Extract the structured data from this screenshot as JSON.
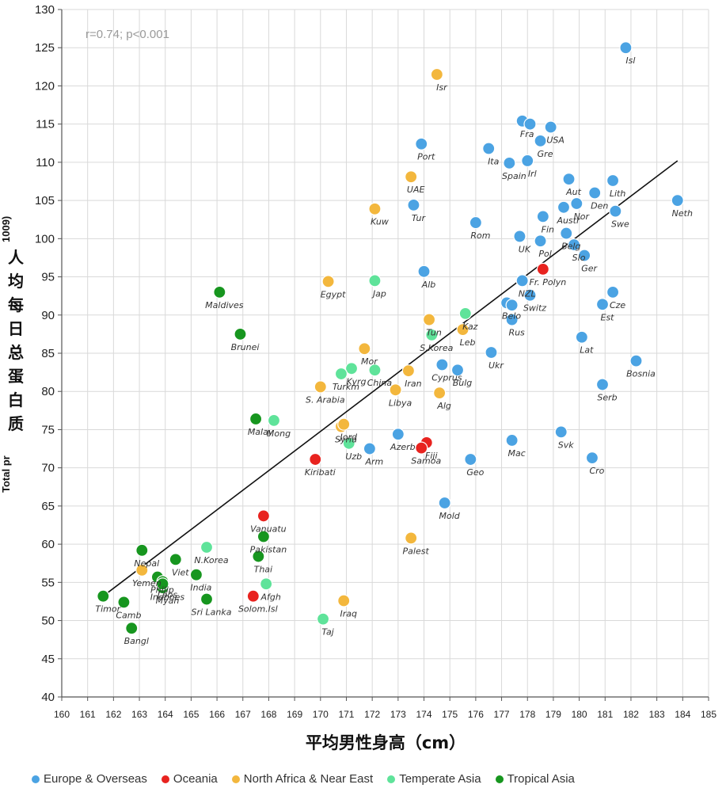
{
  "chart_data": {
    "type": "scatter",
    "xlabel": "平均男性身高（cm）",
    "ylabel_cn": [
      "人",
      "均",
      "每",
      "日",
      "总",
      "蛋",
      "白",
      "质"
    ],
    "ylabel_en_bottom": "Total pr",
    "ylabel_en_top": "1009)",
    "annotation": "r=0.74; p<0.001",
    "xlim": [
      160,
      185
    ],
    "ylim": [
      40,
      130
    ],
    "xticks": [
      160,
      161,
      162,
      163,
      164,
      165,
      166,
      167,
      168,
      169,
      170,
      171,
      172,
      173,
      174,
      175,
      176,
      177,
      178,
      179,
      180,
      181,
      182,
      183,
      184,
      185
    ],
    "yticks": [
      40,
      45,
      50,
      55,
      60,
      65,
      70,
      75,
      80,
      85,
      90,
      95,
      100,
      105,
      110,
      115,
      120,
      125,
      130
    ],
    "grid": true,
    "trendline": {
      "x1": 161.6,
      "y1": 53.2,
      "x2": 183.8,
      "y2": 110.2
    },
    "groups": [
      {
        "key": "eu",
        "name": "Europe & Overseas",
        "color": "#4ba3e3"
      },
      {
        "key": "oc",
        "name": "Oceania",
        "color": "#e8231f"
      },
      {
        "key": "na",
        "name": "North Africa & Near East",
        "color": "#f3b73d"
      },
      {
        "key": "ta",
        "name": "Temperate Asia",
        "color": "#5fe39a"
      },
      {
        "key": "tr",
        "name": "Tropical Asia",
        "color": "#17961f"
      }
    ],
    "points": [
      {
        "label": "Isl",
        "g": "eu",
        "x": 181.8,
        "y": 125.0
      },
      {
        "label": "Neth",
        "g": "eu",
        "x": 183.8,
        "y": 105.0
      },
      {
        "label": "Fra",
        "g": "eu",
        "x": 177.8,
        "y": 115.4
      },
      {
        "label": "",
        "g": "eu",
        "x": 178.1,
        "y": 115.0
      },
      {
        "label": "USA",
        "g": "eu",
        "x": 178.9,
        "y": 114.6
      },
      {
        "label": "Gre",
        "g": "eu",
        "x": 178.5,
        "y": 112.8
      },
      {
        "label": "Ita",
        "g": "eu",
        "x": 176.5,
        "y": 111.8
      },
      {
        "label": "Port",
        "g": "eu",
        "x": 173.9,
        "y": 112.4
      },
      {
        "label": "Irl",
        "g": "eu",
        "x": 178.0,
        "y": 110.2
      },
      {
        "label": "Spain",
        "g": "eu",
        "x": 177.3,
        "y": 109.9
      },
      {
        "label": "Aut",
        "g": "eu",
        "x": 179.6,
        "y": 107.8
      },
      {
        "label": "Den",
        "g": "eu",
        "x": 180.6,
        "y": 106.0
      },
      {
        "label": "Lith",
        "g": "eu",
        "x": 181.3,
        "y": 107.6
      },
      {
        "label": "Austr",
        "g": "eu",
        "x": 179.4,
        "y": 104.1
      },
      {
        "label": "Swe",
        "g": "eu",
        "x": 181.4,
        "y": 103.6
      },
      {
        "label": "Nor",
        "g": "eu",
        "x": 179.9,
        "y": 104.6
      },
      {
        "label": "Tur",
        "g": "eu",
        "x": 173.6,
        "y": 104.4
      },
      {
        "label": "Rom",
        "g": "eu",
        "x": 176.0,
        "y": 102.1
      },
      {
        "label": "Fin",
        "g": "eu",
        "x": 178.6,
        "y": 102.9
      },
      {
        "label": "Belg",
        "g": "eu",
        "x": 179.5,
        "y": 100.7
      },
      {
        "label": "UK",
        "g": "eu",
        "x": 177.7,
        "y": 100.3
      },
      {
        "label": "Pol",
        "g": "eu",
        "x": 178.5,
        "y": 99.7
      },
      {
        "label": "Slo",
        "g": "eu",
        "x": 179.8,
        "y": 99.2
      },
      {
        "label": "Ger",
        "g": "eu",
        "x": 180.2,
        "y": 97.8
      },
      {
        "label": "Alb",
        "g": "eu",
        "x": 174.0,
        "y": 95.7
      },
      {
        "label": "NZL",
        "g": "eu",
        "x": 177.8,
        "y": 94.5
      },
      {
        "label": "Cze",
        "g": "eu",
        "x": 181.3,
        "y": 93.0
      },
      {
        "label": "Switz",
        "g": "eu",
        "x": 178.1,
        "y": 92.6
      },
      {
        "label": "Belo",
        "g": "eu",
        "x": 177.2,
        "y": 91.6
      },
      {
        "label": "",
        "g": "eu",
        "x": 177.4,
        "y": 91.3
      },
      {
        "label": "Est",
        "g": "eu",
        "x": 180.9,
        "y": 91.4
      },
      {
        "label": "Rus",
        "g": "eu",
        "x": 177.4,
        "y": 89.4
      },
      {
        "label": "Lat",
        "g": "eu",
        "x": 180.1,
        "y": 87.1
      },
      {
        "label": "Ukr",
        "g": "eu",
        "x": 176.6,
        "y": 85.1
      },
      {
        "label": "Bosnia",
        "g": "eu",
        "x": 182.2,
        "y": 84.0
      },
      {
        "label": "Cyprus",
        "g": "eu",
        "x": 174.7,
        "y": 83.5
      },
      {
        "label": "Bulg",
        "g": "eu",
        "x": 175.3,
        "y": 82.8
      },
      {
        "label": "Serb",
        "g": "eu",
        "x": 180.9,
        "y": 80.9
      },
      {
        "label": "Svk",
        "g": "eu",
        "x": 179.3,
        "y": 74.7
      },
      {
        "label": "Mac",
        "g": "eu",
        "x": 177.4,
        "y": 73.6
      },
      {
        "label": "Azerb",
        "g": "eu",
        "x": 173.0,
        "y": 74.4
      },
      {
        "label": "Arm",
        "g": "eu",
        "x": 171.9,
        "y": 72.5
      },
      {
        "label": "Geo",
        "g": "eu",
        "x": 175.8,
        "y": 71.1
      },
      {
        "label": "Cro",
        "g": "eu",
        "x": 180.5,
        "y": 71.3
      },
      {
        "label": "Mold",
        "g": "eu",
        "x": 174.8,
        "y": 65.4
      },
      {
        "label": "Fr. Polyn",
        "g": "oc",
        "x": 178.6,
        "y": 96.0
      },
      {
        "label": "Fiji",
        "g": "oc",
        "x": 174.1,
        "y": 73.3
      },
      {
        "label": "Samoa",
        "g": "oc",
        "x": 173.9,
        "y": 72.6
      },
      {
        "label": "Kiribati",
        "g": "oc",
        "x": 169.8,
        "y": 71.1
      },
      {
        "label": "Vanuatu",
        "g": "oc",
        "x": 167.8,
        "y": 63.7
      },
      {
        "label": "Solom.Isl",
        "g": "oc",
        "x": 167.4,
        "y": 53.2
      },
      {
        "label": "Isr",
        "g": "na",
        "x": 174.5,
        "y": 121.5
      },
      {
        "label": "UAE",
        "g": "na",
        "x": 173.5,
        "y": 108.1
      },
      {
        "label": "Kuw",
        "g": "na",
        "x": 172.1,
        "y": 103.9
      },
      {
        "label": "Egypt",
        "g": "na",
        "x": 170.3,
        "y": 94.4
      },
      {
        "label": "Tun",
        "g": "na",
        "x": 174.2,
        "y": 89.4
      },
      {
        "label": "Leb",
        "g": "na",
        "x": 175.5,
        "y": 88.1
      },
      {
        "label": "Mor",
        "g": "na",
        "x": 171.7,
        "y": 85.6
      },
      {
        "label": "Iran",
        "g": "na",
        "x": 173.4,
        "y": 82.7
      },
      {
        "label": "S. Arabia",
        "g": "na",
        "x": 170.0,
        "y": 80.6
      },
      {
        "label": "Libya",
        "g": "na",
        "x": 172.9,
        "y": 80.2
      },
      {
        "label": "Alg",
        "g": "na",
        "x": 174.6,
        "y": 79.8
      },
      {
        "label": "Syria",
        "g": "na",
        "x": 170.8,
        "y": 75.4
      },
      {
        "label": "Jord",
        "g": "na",
        "x": 170.9,
        "y": 75.7
      },
      {
        "label": "Palest",
        "g": "na",
        "x": 173.5,
        "y": 60.8
      },
      {
        "label": "Yemen",
        "g": "na",
        "x": 163.1,
        "y": 56.6
      },
      {
        "label": "Iraq",
        "g": "na",
        "x": 170.9,
        "y": 52.6
      },
      {
        "label": "Jap",
        "g": "ta",
        "x": 172.1,
        "y": 94.5
      },
      {
        "label": "Kaz",
        "g": "ta",
        "x": 175.6,
        "y": 90.2
      },
      {
        "label": "S.Korea",
        "g": "ta",
        "x": 174.3,
        "y": 87.4
      },
      {
        "label": "Kyrg",
        "g": "ta",
        "x": 171.2,
        "y": 83.0
      },
      {
        "label": "Turkm",
        "g": "ta",
        "x": 170.8,
        "y": 82.3
      },
      {
        "label": "China",
        "g": "ta",
        "x": 172.1,
        "y": 82.8
      },
      {
        "label": "Mong",
        "g": "ta",
        "x": 168.2,
        "y": 76.2
      },
      {
        "label": "Uzb",
        "g": "ta",
        "x": 171.1,
        "y": 73.2
      },
      {
        "label": "N.Korea",
        "g": "ta",
        "x": 165.6,
        "y": 59.6
      },
      {
        "label": "Afgh",
        "g": "ta",
        "x": 167.9,
        "y": 54.8
      },
      {
        "label": "Taj",
        "g": "ta",
        "x": 170.1,
        "y": 50.2
      },
      {
        "label": "Maldives",
        "g": "tr",
        "x": 166.1,
        "y": 93.0
      },
      {
        "label": "Brunei",
        "g": "tr",
        "x": 166.9,
        "y": 87.5
      },
      {
        "label": "Malay",
        "g": "tr",
        "x": 167.5,
        "y": 76.4
      },
      {
        "label": "Pakistan",
        "g": "tr",
        "x": 167.8,
        "y": 61.0
      },
      {
        "label": "Thai",
        "g": "tr",
        "x": 167.6,
        "y": 58.4
      },
      {
        "label": "Nepal",
        "g": "tr",
        "x": 163.1,
        "y": 59.2
      },
      {
        "label": "Viet",
        "g": "tr",
        "x": 164.4,
        "y": 58.0
      },
      {
        "label": "India",
        "g": "tr",
        "x": 165.2,
        "y": 56.0
      },
      {
        "label": "Philip",
        "g": "tr",
        "x": 163.7,
        "y": 55.7
      },
      {
        "label": "Laos",
        "g": "tr",
        "x": 163.9,
        "y": 55.1
      },
      {
        "label": "Myan",
        "g": "tr",
        "x": 163.9,
        "y": 54.3
      },
      {
        "label": "Indones",
        "g": "tr",
        "x": 163.9,
        "y": 54.8
      },
      {
        "label": "Sri Lanka",
        "g": "tr",
        "x": 165.6,
        "y": 52.8
      },
      {
        "label": "Timor",
        "g": "tr",
        "x": 161.6,
        "y": 53.2
      },
      {
        "label": "Camb",
        "g": "tr",
        "x": 162.4,
        "y": 52.4
      },
      {
        "label": "Bangl",
        "g": "tr",
        "x": 162.7,
        "y": 49.0
      }
    ]
  }
}
